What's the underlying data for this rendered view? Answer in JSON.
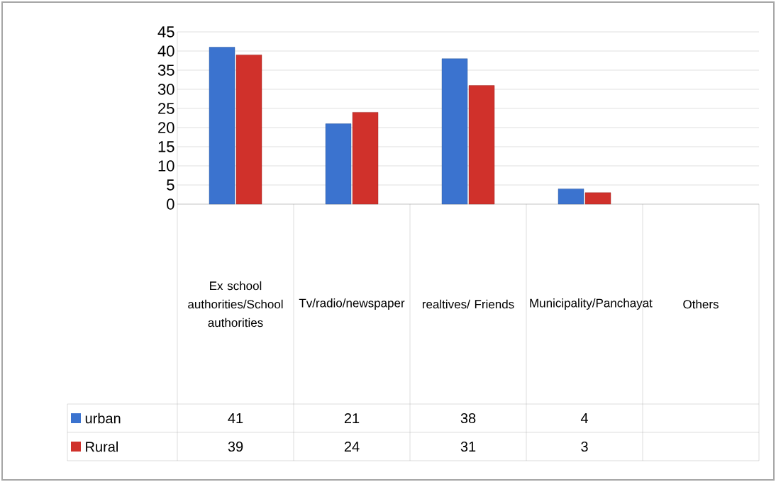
{
  "chart_data": {
    "type": "bar",
    "categories": [
      "Ex school authorities/School authorities",
      "Tv/radio/newspaper",
      "realtives/ Friends",
      "Municipality/Panchayat",
      "Others"
    ],
    "series": [
      {
        "name": "urban",
        "color": "#3b73cf",
        "values": [
          41,
          21,
          38,
          4,
          null
        ]
      },
      {
        "name": "Rural",
        "color": "#d0312b",
        "values": [
          39,
          24,
          31,
          3,
          null
        ]
      }
    ],
    "ylim": [
      0,
      45
    ],
    "yticks": [
      0,
      5,
      10,
      15,
      20,
      25,
      30,
      35,
      40,
      45
    ],
    "grid": "y",
    "legend": "left",
    "data_labels": true
  }
}
